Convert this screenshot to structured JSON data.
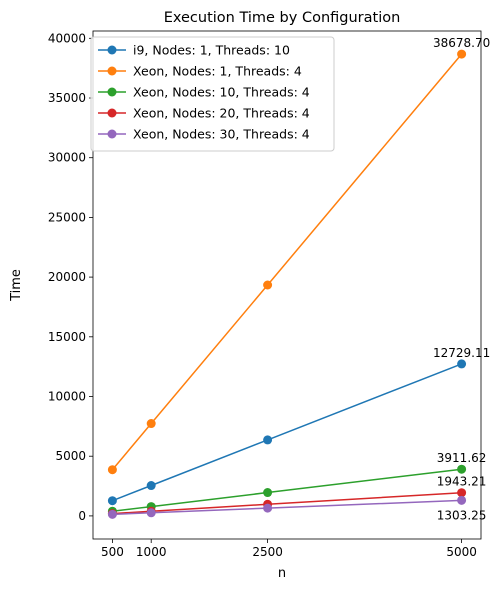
{
  "chart_data": {
    "type": "line",
    "title": "Execution Time by Configuration",
    "xlabel": "n",
    "ylabel": "Time",
    "x": [
      500,
      1000,
      2500,
      5000
    ],
    "xticks": [
      500,
      1000,
      2500,
      5000
    ],
    "xtick_labels": [
      "500",
      "1000",
      "2500",
      "5000"
    ],
    "yticks": [
      0,
      5000,
      10000,
      15000,
      20000,
      25000,
      30000,
      35000,
      40000
    ],
    "ytick_labels": [
      "0",
      "5000",
      "10000",
      "15000",
      "20000",
      "25000",
      "30000",
      "35000",
      "40000"
    ],
    "xlim": [
      250,
      5250
    ],
    "ylim": [
      -1934,
      40612
    ],
    "grid": false,
    "legend_position": "top-left",
    "series": [
      {
        "name": "i9, Nodes: 1, Threads: 10",
        "color": "#1f77b4",
        "values": [
          1273,
          2546,
          6365,
          12729.11
        ]
      },
      {
        "name": "Xeon, Nodes: 1, Threads: 4",
        "color": "#ff7f0e",
        "values": [
          3868,
          7736,
          19339,
          38678.7
        ]
      },
      {
        "name": "Xeon, Nodes: 10, Threads: 4",
        "color": "#2ca02c",
        "values": [
          391,
          782,
          1956,
          3911.62
        ]
      },
      {
        "name": "Xeon, Nodes: 20, Threads: 4",
        "color": "#d62728",
        "values": [
          194,
          389,
          972,
          1943.21
        ]
      },
      {
        "name": "Xeon, Nodes: 30, Threads: 4",
        "color": "#9467bd",
        "values": [
          130,
          261,
          652,
          1303.25
        ]
      }
    ],
    "annotations": [
      {
        "text": "12729.11",
        "x": 5000,
        "y": 12729.11,
        "series": 0
      },
      {
        "text": "38678.70",
        "x": 5000,
        "y": 38678.7,
        "series": 1
      },
      {
        "text": "3911.62",
        "x": 5000,
        "y": 3911.62,
        "series": 2
      },
      {
        "text": "1943.21",
        "x": 5000,
        "y": 1943.21,
        "series": 3
      },
      {
        "text": "1303.25",
        "x": 5000,
        "y": 1303.25,
        "series": 4
      }
    ]
  }
}
